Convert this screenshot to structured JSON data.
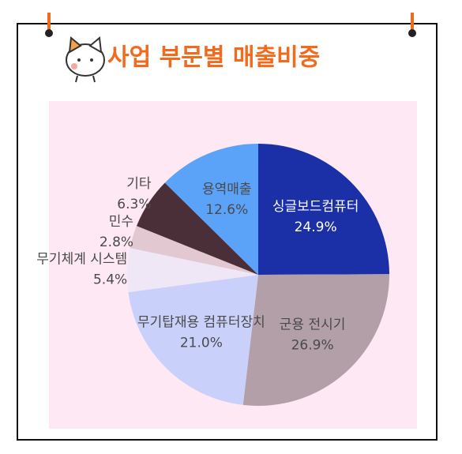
{
  "chart_data": {
    "type": "pie",
    "title": "사업 부문별 매출비중",
    "categories": [
      "싱글보드컴퓨터",
      "군용 전시기",
      "무기탑재용 컴퓨터장치",
      "무기체계 시스템",
      "민수",
      "기타",
      "용역매출"
    ],
    "values": [
      24.9,
      26.9,
      21.0,
      5.4,
      2.8,
      6.3,
      12.6
    ],
    "value_labels": [
      "24.9%",
      "26.9%",
      "21.0%",
      "5.4%",
      "2.8%",
      "6.3%",
      "12.6%"
    ],
    "colors": [
      "#1b2fa6",
      "#b39fa8",
      "#c9d0fa",
      "#efe7f6",
      "#e2c9d1",
      "#4b2f38",
      "#5ba2f9"
    ]
  }
}
